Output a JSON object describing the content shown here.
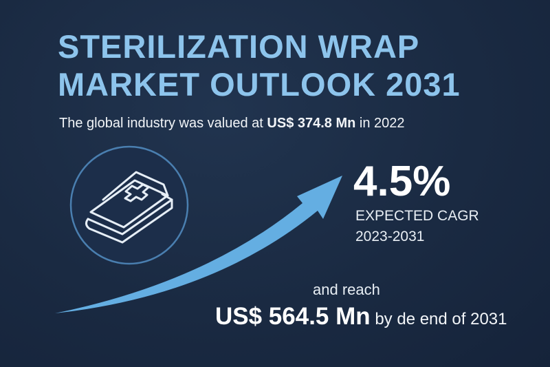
{
  "title": {
    "line1": "STERILIZATION WRAP",
    "line2": "MARKET OUTLOOK 2031"
  },
  "intro": {
    "before": "The global industry was valued at",
    "value": "US$ 374.8 Mn",
    "after": "in 2022"
  },
  "cagr": {
    "value": "4.5%",
    "label": "EXPECTED CAGR",
    "period": "2023-2031"
  },
  "forecast": {
    "lead": "and reach",
    "value": "US$ 564.5 Mn",
    "after": "by de end of 2031"
  }
}
